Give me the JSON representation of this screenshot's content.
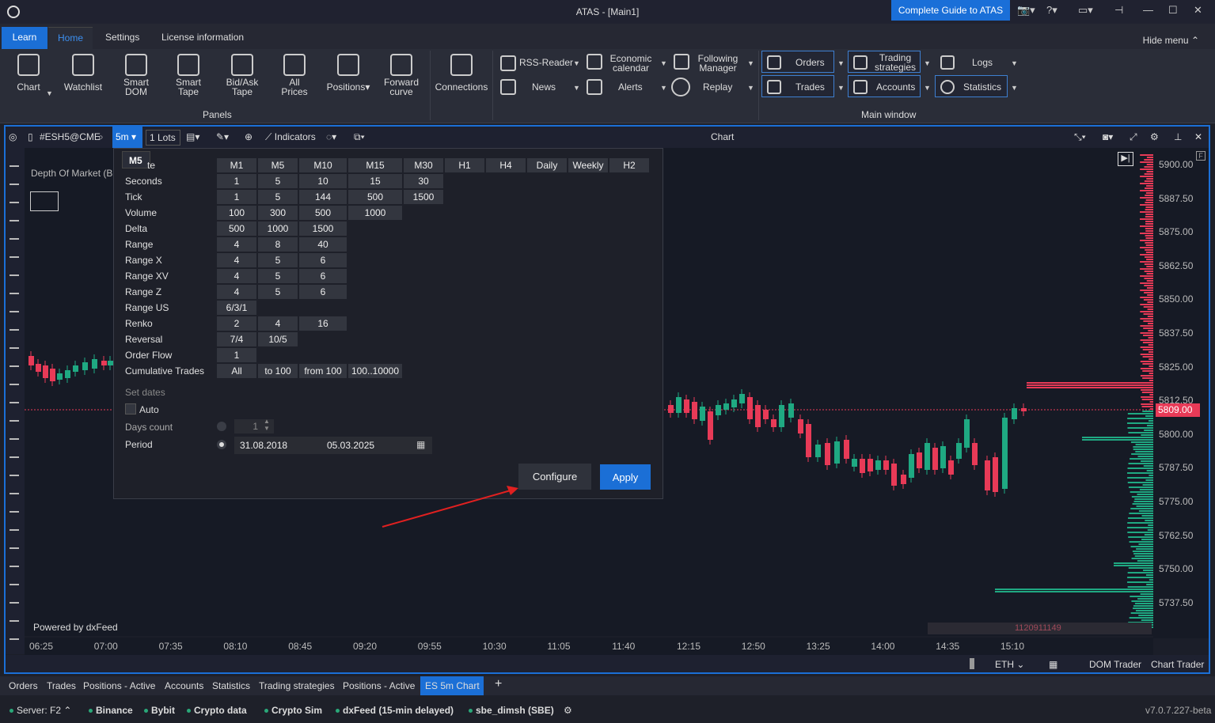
{
  "window": {
    "title": "ATAS - [Main1]",
    "guide_button": "Complete Guide to ATAS"
  },
  "menu": {
    "tabs": [
      "Learn",
      "Home",
      "Settings",
      "License information"
    ],
    "hide_menu": "Hide menu"
  },
  "ribbon": {
    "panels": [
      {
        "label": "Chart",
        "icon": "bar-chart-icon"
      },
      {
        "label": "Watchlist",
        "icon": "clipboard-icon"
      },
      {
        "label": "Smart\nDOM",
        "icon": "dom-icon"
      },
      {
        "label": "Smart\nTape",
        "icon": "tape-icon"
      },
      {
        "label": "Bid/Ask\nTape",
        "icon": "bid-ask-icon"
      },
      {
        "label": "All\nPrices",
        "icon": "list-icon"
      },
      {
        "label": "Positions",
        "icon": "briefcase-icon"
      },
      {
        "label": "Forward\ncurve",
        "icon": "curve-icon"
      }
    ],
    "panels_group_label": "Panels",
    "connections_label": "Connections",
    "tools": [
      {
        "label": "RSS-Reader",
        "icon": "rss-icon"
      },
      {
        "label": "Economic\ncalendar",
        "icon": "calendar-icon"
      },
      {
        "label": "Following\nManager",
        "icon": "manager-icon"
      },
      {
        "label": "News",
        "icon": "news-icon"
      },
      {
        "label": "Alerts",
        "icon": "bell-icon"
      },
      {
        "label": "Replay",
        "icon": "replay-icon"
      }
    ],
    "main_window": [
      {
        "label": "Orders",
        "icon": "orders-icon"
      },
      {
        "label": "Trading\nstrategies",
        "icon": "strategy-icon"
      },
      {
        "label": "Logs",
        "icon": "logs-icon"
      },
      {
        "label": "Trades",
        "icon": "trades-icon"
      },
      {
        "label": "Accounts",
        "icon": "accounts-icon"
      },
      {
        "label": "Statistics",
        "icon": "pie-icon"
      }
    ],
    "main_window_label": "Main window"
  },
  "chart": {
    "instrument": "#ESH5@CME",
    "timeframe": "5m",
    "lots": "1 Lots",
    "indicators": "Indicators",
    "title": "Chart",
    "dom_label": "Depth Of Market (B",
    "powered": "Powered by dxFeed",
    "current_price": "5809.00",
    "volume_text": "1120911149",
    "price_labels": [
      "5900.00",
      "5887.50",
      "5875.00",
      "5862.50",
      "5850.00",
      "5837.50",
      "5825.00",
      "5812.50",
      "5800.00",
      "5787.50",
      "5775.00",
      "5762.50",
      "5750.00",
      "5737.50"
    ],
    "time_labels": [
      "06:25",
      "07:00",
      "07:35",
      "08:10",
      "08:45",
      "09:20",
      "09:55",
      "10:30",
      "11:05",
      "11:40",
      "12:15",
      "12:50",
      "13:25",
      "14:00",
      "14:35",
      "15:10"
    ],
    "bottom": {
      "session": "ETH",
      "dom_trader": "DOM Trader",
      "chart_trader": "Chart Trader"
    }
  },
  "popup": {
    "tooltip": "M5",
    "first_row_label_suffix": "te",
    "header": [
      "M1",
      "M5",
      "M10",
      "M15",
      "M30",
      "H1",
      "H4",
      "Daily",
      "Weekly",
      "H2"
    ],
    "rows": [
      {
        "label": "Seconds",
        "values": [
          "1",
          "5",
          "10",
          "15",
          "30"
        ]
      },
      {
        "label": "Tick",
        "values": [
          "1",
          "5",
          "144",
          "500",
          "1500"
        ]
      },
      {
        "label": "Volume",
        "values": [
          "100",
          "300",
          "500",
          "1000"
        ]
      },
      {
        "label": "Delta",
        "values": [
          "500",
          "1000",
          "1500"
        ]
      },
      {
        "label": "Range",
        "values": [
          "4",
          "8",
          "40"
        ]
      },
      {
        "label": "Range X",
        "values": [
          "4",
          "5",
          "6"
        ]
      },
      {
        "label": "Range XV",
        "values": [
          "4",
          "5",
          "6"
        ]
      },
      {
        "label": "Range Z",
        "values": [
          "4",
          "5",
          "6"
        ]
      },
      {
        "label": "Range US",
        "values": [
          "6/3/1"
        ]
      },
      {
        "label": "Renko",
        "values": [
          "2",
          "4",
          "16"
        ]
      },
      {
        "label": "Reversal",
        "values": [
          "7/4",
          "10/5"
        ]
      },
      {
        "label": "Order Flow",
        "values": [
          "1"
        ]
      },
      {
        "label": "Cumulative Trades",
        "values": [
          "All",
          "to 100",
          "from 100",
          "100..10000"
        ]
      }
    ],
    "set_dates": "Set dates",
    "auto": "Auto",
    "days_count_label": "Days count",
    "days_count_value": "1",
    "period_label": "Period",
    "period_from": "31.08.2018",
    "period_to": "05.03.2025",
    "configure": "Configure",
    "apply": "Apply"
  },
  "tabs": [
    "Orders",
    "Trades",
    "Positions - Active",
    "Accounts",
    "Statistics",
    "Trading strategies",
    "Positions - Active",
    "ES 5m Chart"
  ],
  "status": {
    "server": "Server: F2",
    "feeds": [
      "Binance",
      "Bybit",
      "Crypto data",
      "Crypto Sim",
      "dxFeed (15-min delayed)",
      "sbe_dimsh (SBE)"
    ],
    "version": "v7.0.7.227-beta"
  },
  "colors": {
    "accent": "#1b6fd6",
    "bull": "#1fa982",
    "bear": "#e83a57"
  }
}
